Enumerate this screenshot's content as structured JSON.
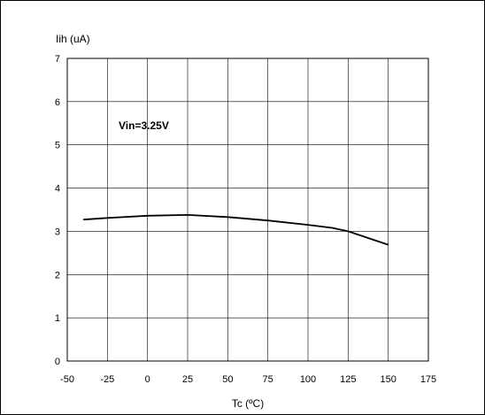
{
  "chart_data": {
    "type": "line",
    "ylabel": "Iih (uA)",
    "xlabel": "Tc (ºC)",
    "annotation": "Vin=3.25V",
    "xlim": [
      -50,
      175
    ],
    "ylim": [
      0,
      7
    ],
    "xticks": [
      -50,
      -25,
      0,
      25,
      50,
      75,
      100,
      125,
      150,
      175
    ],
    "yticks": [
      0,
      1,
      2,
      3,
      4,
      5,
      6,
      7
    ],
    "grid": true,
    "series": [
      {
        "x": [
          -40,
          -25,
          0,
          25,
          50,
          75,
          100,
          115,
          125,
          150
        ],
        "y": [
          3.27,
          3.31,
          3.36,
          3.38,
          3.33,
          3.25,
          3.15,
          3.08,
          3.0,
          2.69
        ]
      }
    ]
  }
}
